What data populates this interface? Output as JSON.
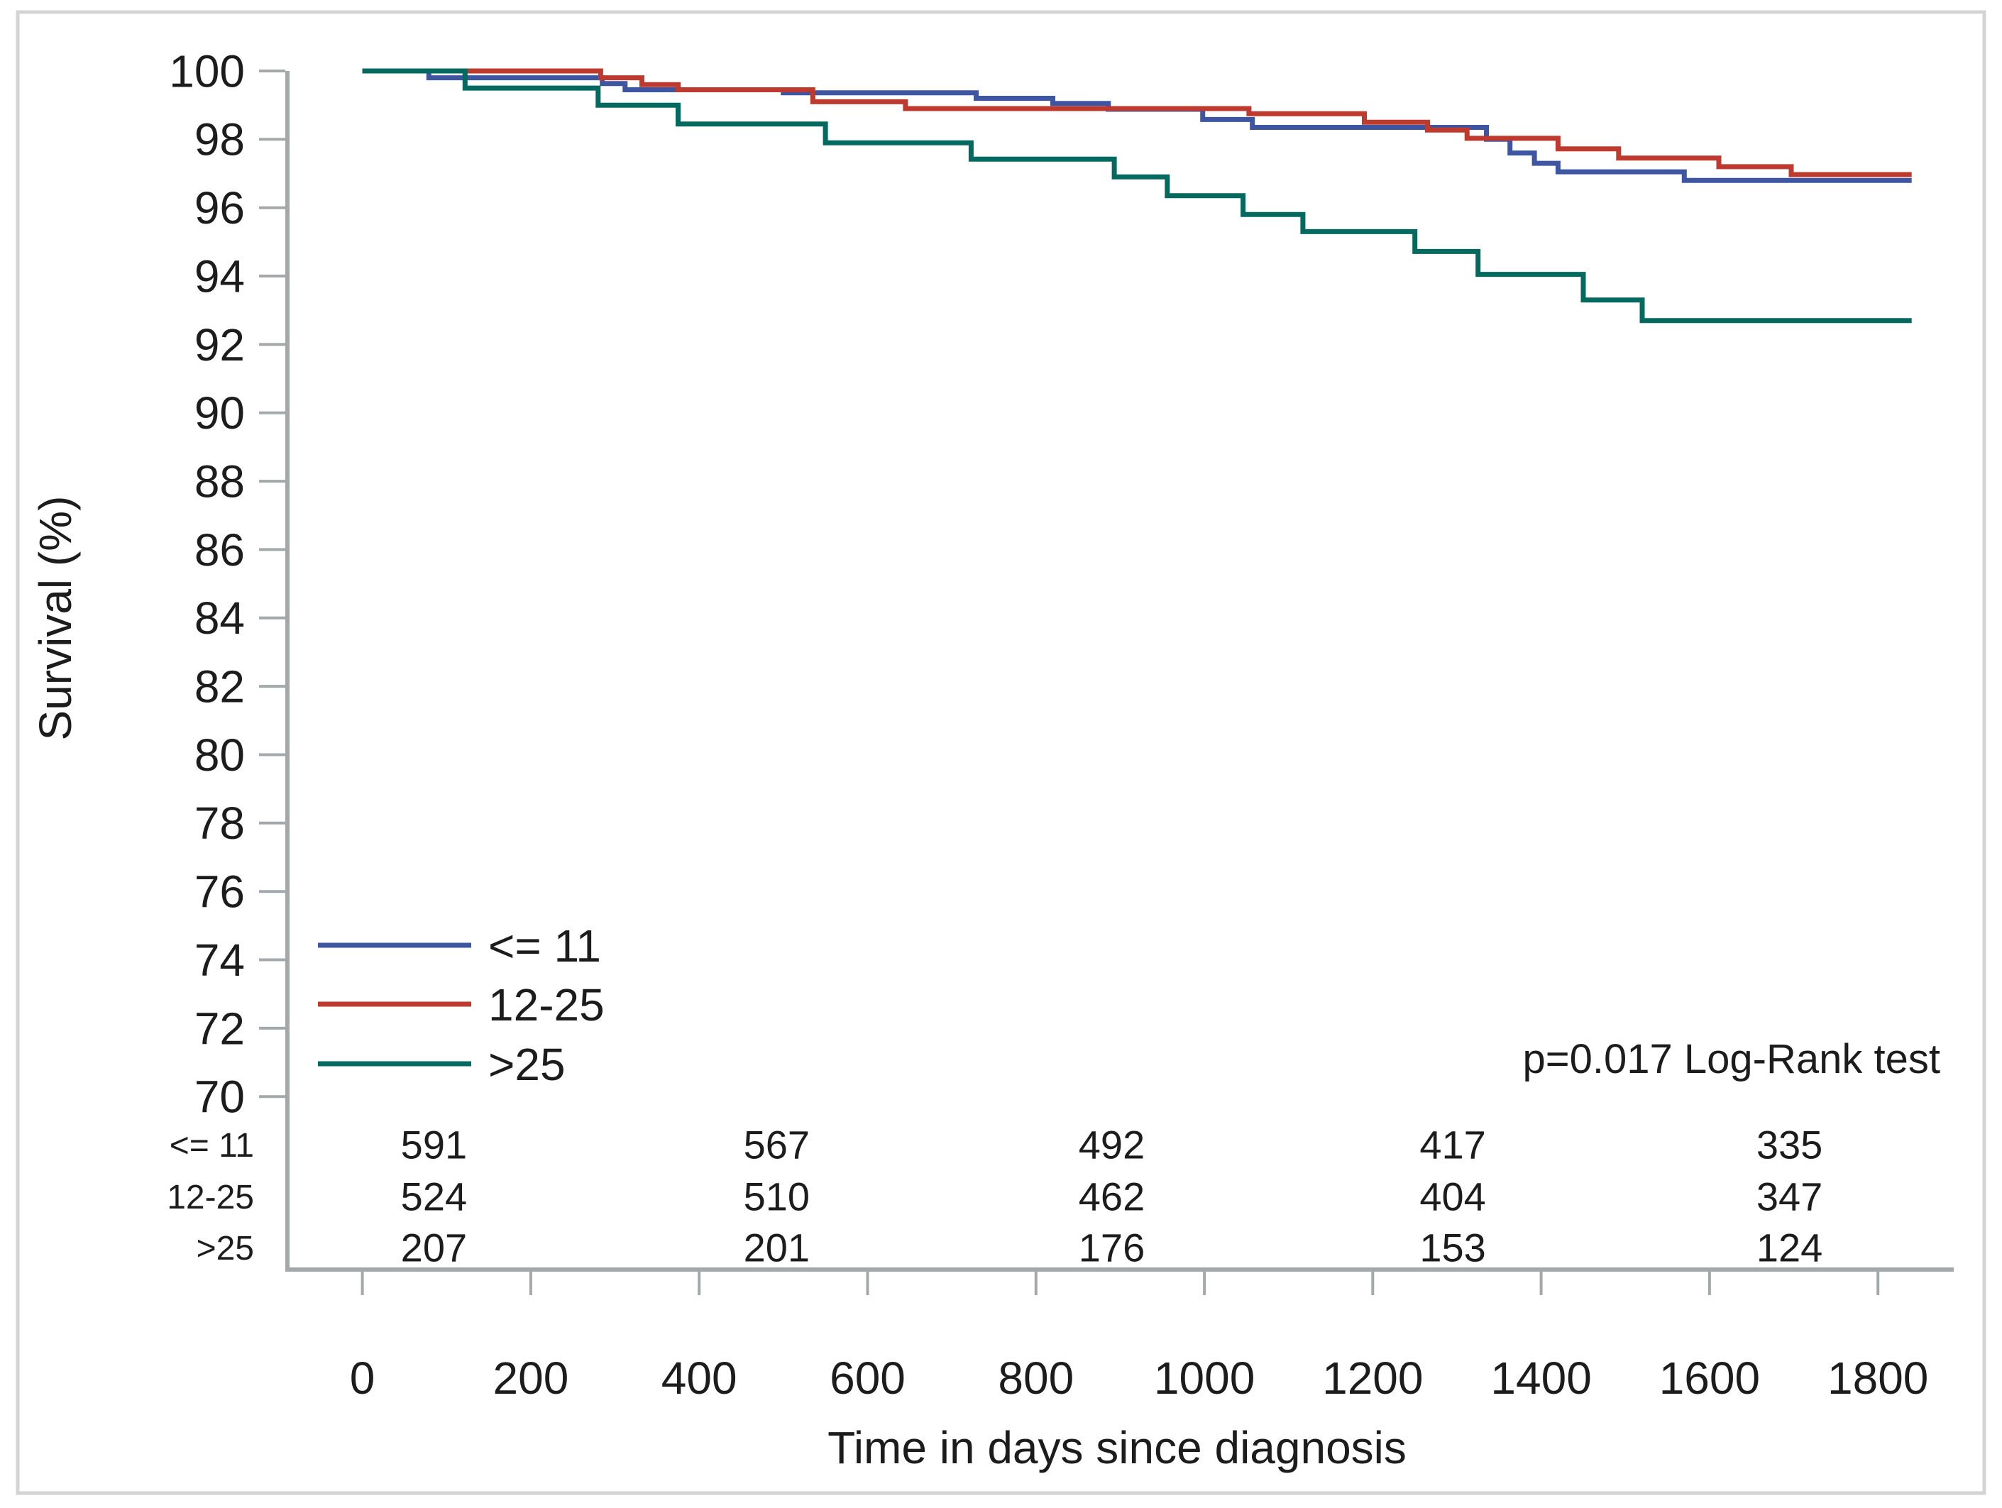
{
  "chart_data": {
    "type": "line",
    "subtype": "kaplan-meier-step-survival",
    "title": "",
    "xlabel": "Time in days since diagnosis",
    "ylabel": "Survival (%)",
    "xlim": [
      0,
      1800
    ],
    "ylim": [
      70,
      100
    ],
    "grid": false,
    "legend_position": "inside-lower-left",
    "annotation": "p=0.017 Log-Rank test",
    "end_day": 1840,
    "x_ticks": [
      {
        "day": 0,
        "label": "0"
      },
      {
        "day": 200,
        "label": "200"
      },
      {
        "day": 400,
        "label": "400"
      },
      {
        "day": 600,
        "label": "600"
      },
      {
        "day": 800,
        "label": "800"
      },
      {
        "day": 1000,
        "label": "1000"
      },
      {
        "day": 1200,
        "label": "1200"
      },
      {
        "day": 1400,
        "label": "1400"
      },
      {
        "day": 1600,
        "label": "1600"
      },
      {
        "day": 1800,
        "label": "1800"
      }
    ],
    "y_ticks": [
      {
        "pct": 100,
        "label": "100"
      },
      {
        "pct": 98,
        "label": "98"
      },
      {
        "pct": 96,
        "label": "96"
      },
      {
        "pct": 94,
        "label": "94"
      },
      {
        "pct": 92,
        "label": "92"
      },
      {
        "pct": 90,
        "label": "90"
      },
      {
        "pct": 88,
        "label": "88"
      },
      {
        "pct": 86,
        "label": "86"
      },
      {
        "pct": 84,
        "label": "84"
      },
      {
        "pct": 82,
        "label": "82"
      },
      {
        "pct": 80,
        "label": "80"
      },
      {
        "pct": 78,
        "label": "78"
      },
      {
        "pct": 76,
        "label": "76"
      },
      {
        "pct": 74,
        "label": "74"
      },
      {
        "pct": 72,
        "label": "72"
      },
      {
        "pct": 70,
        "label": "70"
      }
    ],
    "series": [
      {
        "name": "<= 11",
        "color": "#3E56A2",
        "label_color": "#5063AC",
        "points": [
          [
            0,
            100
          ],
          [
            79,
            99.8
          ],
          [
            285,
            99.63
          ],
          [
            312,
            99.45
          ],
          [
            500,
            99.36
          ],
          [
            729,
            99.2
          ],
          [
            820,
            99.05
          ],
          [
            886,
            98.88
          ],
          [
            998,
            98.58
          ],
          [
            1057,
            98.35
          ],
          [
            1335,
            98.0
          ],
          [
            1363,
            97.6
          ],
          [
            1392,
            97.3
          ],
          [
            1420,
            97.05
          ],
          [
            1570,
            96.8
          ]
        ]
      },
      {
        "name": "12-25",
        "color": "#BE3A2E",
        "label_color": "#C7463C",
        "points": [
          [
            0,
            100
          ],
          [
            283,
            99.8
          ],
          [
            332,
            99.6
          ],
          [
            375,
            99.45
          ],
          [
            535,
            99.1
          ],
          [
            645,
            98.9
          ],
          [
            1053,
            98.75
          ],
          [
            1190,
            98.5
          ],
          [
            1265,
            98.27
          ],
          [
            1312,
            98.03
          ],
          [
            1420,
            97.72
          ],
          [
            1492,
            97.45
          ],
          [
            1611,
            97.2
          ],
          [
            1697,
            96.97
          ]
        ]
      },
      {
        "name": ">25",
        "color": "#04695E",
        "label_color": "#11806F",
        "points": [
          [
            0,
            100
          ],
          [
            122,
            99.5
          ],
          [
            280,
            99.0
          ],
          [
            375,
            98.45
          ],
          [
            550,
            97.9
          ],
          [
            723,
            97.42
          ],
          [
            893,
            96.9
          ],
          [
            956,
            96.35
          ],
          [
            1046,
            95.8
          ],
          [
            1117,
            95.3
          ],
          [
            1250,
            94.72
          ],
          [
            1325,
            94.05
          ],
          [
            1450,
            93.3
          ],
          [
            1520,
            92.7
          ]
        ]
      }
    ],
    "at_risk_table": {
      "column_days": [
        85,
        492,
        890,
        1295,
        1695
      ],
      "rows": [
        {
          "label": "<= 11",
          "color": "#5063AC",
          "values": [
            "591",
            "567",
            "492",
            "417",
            "335"
          ]
        },
        {
          "label": "12-25",
          "color": "#C7463C",
          "values": [
            "524",
            "510",
            "462",
            "404",
            "347"
          ]
        },
        {
          "label": ">25",
          "color": "#11806F",
          "values": [
            "207",
            "201",
            "176",
            "153",
            "124"
          ]
        }
      ]
    },
    "colors": {
      "axis": "#A3A9AB",
      "text": "#1c1c1c",
      "frame": "#D4D4D4",
      "background": "#FFFFFF"
    }
  }
}
